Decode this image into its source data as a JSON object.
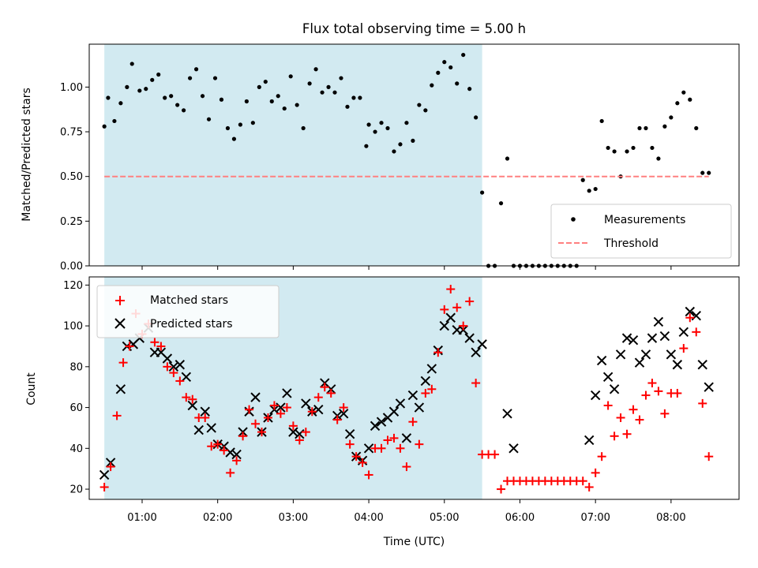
{
  "colors": {
    "shade": "#add8e6",
    "measurement": "#000000",
    "threshold": "#ff8080",
    "matched": "#ff0000",
    "predicted": "#000000"
  },
  "chart_data": [
    {
      "type": "scatter",
      "title": "Flux total observing time = 5.00 h",
      "xlabel": "",
      "ylabel": "Matched/Predicted stars",
      "x_unit": "hours UTC",
      "xlim": [
        "00:18",
        "08:54"
      ],
      "ylim": [
        0,
        1.24
      ],
      "yticks": [
        "0.00",
        "0.25",
        "0.50",
        "0.75",
        "1.00"
      ],
      "shaded_span": {
        "start": "00:30",
        "end": "05:30"
      },
      "threshold": 0.5,
      "legend": {
        "position": "bottom-right",
        "entries": [
          "Measurements",
          "Threshold"
        ]
      },
      "series": [
        {
          "name": "Measurements",
          "marker": "dot",
          "x": [
            "00:30",
            "00:33",
            "00:38",
            "00:43",
            "00:48",
            "00:52",
            "00:58",
            "01:03",
            "01:08",
            "01:13",
            "01:18",
            "01:23",
            "01:28",
            "01:33",
            "01:38",
            "01:43",
            "01:48",
            "01:53",
            "01:58",
            "02:03",
            "02:08",
            "02:13",
            "02:18",
            "02:23",
            "02:28",
            "02:33",
            "02:38",
            "02:43",
            "02:48",
            "02:53",
            "02:58",
            "03:03",
            "03:08",
            "03:13",
            "03:18",
            "03:23",
            "03:28",
            "03:33",
            "03:38",
            "03:43",
            "03:48",
            "03:53",
            "03:58",
            "04:00",
            "04:05",
            "04:10",
            "04:15",
            "04:20",
            "04:25",
            "04:30",
            "04:35",
            "04:40",
            "04:45",
            "04:50",
            "04:55",
            "05:00",
            "05:05",
            "05:10",
            "05:15",
            "05:20",
            "05:25",
            "05:30",
            "05:35",
            "05:40",
            "05:45",
            "05:50",
            "05:55",
            "06:00",
            "06:05",
            "06:10",
            "06:15",
            "06:20",
            "06:25",
            "06:30",
            "06:35",
            "06:40",
            "06:45",
            "06:50",
            "06:55",
            "07:00",
            "07:05",
            "07:10",
            "07:15",
            "07:20",
            "07:25",
            "07:30",
            "07:35",
            "07:40",
            "07:45",
            "07:50",
            "07:55",
            "08:00",
            "08:05",
            "08:10",
            "08:15",
            "08:20",
            "08:25",
            "08:30"
          ],
          "y": [
            0.78,
            0.94,
            0.81,
            0.91,
            1.0,
            1.13,
            0.98,
            0.99,
            1.04,
            1.07,
            0.94,
            0.95,
            0.9,
            0.87,
            1.05,
            1.1,
            0.95,
            0.82,
            1.05,
            0.93,
            0.77,
            0.71,
            0.79,
            0.92,
            0.8,
            1.0,
            1.03,
            0.92,
            0.95,
            0.88,
            1.06,
            0.9,
            0.77,
            1.02,
            1.1,
            0.97,
            1.0,
            0.97,
            1.05,
            0.89,
            0.94,
            0.94,
            0.67,
            0.79,
            0.75,
            0.8,
            0.77,
            0.64,
            0.68,
            0.8,
            0.7,
            0.9,
            0.87,
            1.01,
            1.08,
            1.14,
            1.11,
            1.02,
            1.18,
            0.99,
            0.83,
            0.41,
            0.0,
            0.0,
            0.35,
            0.6,
            0.0,
            0.0,
            0.0,
            0.0,
            0.0,
            0.0,
            0.0,
            0.0,
            0.0,
            0.0,
            0.0,
            0.48,
            0.42,
            0.43,
            0.81,
            0.66,
            0.64,
            0.5,
            0.64,
            0.66,
            0.77,
            0.77,
            0.66,
            0.6,
            0.78,
            0.83,
            0.91,
            0.97,
            0.93,
            0.77,
            0.52,
            0.52
          ]
        }
      ]
    },
    {
      "type": "scatter",
      "title": "",
      "xlabel": "Time (UTC)",
      "ylabel": "Count",
      "xlim": [
        "00:18",
        "08:54"
      ],
      "ylim": [
        15,
        124
      ],
      "xticks": [
        "01:00",
        "02:00",
        "03:00",
        "04:00",
        "05:00",
        "06:00",
        "07:00",
        "08:00"
      ],
      "yticks": [
        "20",
        "40",
        "60",
        "80",
        "100",
        "120"
      ],
      "shaded_span": {
        "start": "00:30",
        "end": "05:30"
      },
      "legend": {
        "position": "top-left",
        "entries": [
          "Matched stars",
          "Predicted stars"
        ]
      },
      "series": [
        {
          "name": "Matched stars",
          "marker": "plus",
          "x": [
            "00:30",
            "00:35",
            "00:40",
            "00:45",
            "00:50",
            "00:55",
            "01:00",
            "01:05",
            "01:10",
            "01:15",
            "01:20",
            "01:25",
            "01:30",
            "01:35",
            "01:40",
            "01:45",
            "01:50",
            "01:55",
            "02:00",
            "02:05",
            "02:10",
            "02:15",
            "02:20",
            "02:25",
            "02:30",
            "02:35",
            "02:40",
            "02:45",
            "02:50",
            "02:55",
            "03:00",
            "03:05",
            "03:10",
            "03:15",
            "03:20",
            "03:25",
            "03:30",
            "03:35",
            "03:40",
            "03:45",
            "03:50",
            "03:55",
            "04:00",
            "04:05",
            "04:10",
            "04:15",
            "04:20",
            "04:25",
            "04:30",
            "04:35",
            "04:40",
            "04:45",
            "04:50",
            "04:55",
            "05:00",
            "05:05",
            "05:10",
            "05:15",
            "05:20",
            "05:25",
            "05:30",
            "05:35",
            "05:40",
            "05:45",
            "05:50",
            "05:55",
            "06:00",
            "06:05",
            "06:10",
            "06:15",
            "06:20",
            "06:25",
            "06:30",
            "06:35",
            "06:40",
            "06:45",
            "06:50",
            "06:55",
            "07:00",
            "07:05",
            "07:10",
            "07:15",
            "07:20",
            "07:25",
            "07:30",
            "07:35",
            "07:40",
            "07:45",
            "07:50",
            "07:55",
            "08:00",
            "08:05",
            "08:10",
            "08:15",
            "08:20",
            "08:25",
            "08:30"
          ],
          "y": [
            21,
            31,
            56,
            82,
            90,
            106,
            96,
            101,
            92,
            90,
            80,
            77,
            73,
            65,
            64,
            55,
            55,
            41,
            42,
            39,
            28,
            34,
            46,
            59,
            52,
            48,
            55,
            61,
            57,
            60,
            51,
            44,
            48,
            58,
            65,
            70,
            67,
            54,
            60,
            42,
            36,
            33,
            27,
            40,
            40,
            44,
            45,
            40,
            31,
            53,
            42,
            67,
            69,
            87,
            108,
            118,
            109,
            100,
            112,
            72,
            37,
            37,
            37,
            20,
            24,
            24,
            24,
            24,
            24,
            24,
            24,
            24,
            24,
            24,
            24,
            24,
            24,
            21,
            28,
            36,
            61,
            46,
            55,
            47,
            59,
            54,
            66,
            72,
            68,
            57,
            67,
            67,
            89,
            104,
            97,
            62,
            36
          ]
        },
        {
          "name": "Predicted stars",
          "marker": "x",
          "x": [
            "00:30",
            "00:35",
            "00:43",
            "00:48",
            "00:53",
            "00:58",
            "01:05",
            "01:10",
            "01:15",
            "01:20",
            "01:25",
            "01:30",
            "01:35",
            "01:40",
            "01:45",
            "01:50",
            "01:55",
            "02:00",
            "02:05",
            "02:10",
            "02:15",
            "02:20",
            "02:25",
            "02:30",
            "02:35",
            "02:40",
            "02:45",
            "02:50",
            "02:55",
            "03:00",
            "03:05",
            "03:10",
            "03:15",
            "03:20",
            "03:25",
            "03:30",
            "03:35",
            "03:40",
            "03:45",
            "03:50",
            "03:55",
            "04:00",
            "04:05",
            "04:10",
            "04:15",
            "04:20",
            "04:25",
            "04:30",
            "04:35",
            "04:40",
            "04:45",
            "04:50",
            "04:55",
            "05:00",
            "05:05",
            "05:10",
            "05:15",
            "05:20",
            "05:25",
            "05:30",
            "05:50",
            "05:55",
            "06:55",
            "07:00",
            "07:05",
            "07:10",
            "07:15",
            "07:20",
            "07:25",
            "07:30",
            "07:35",
            "07:40",
            "07:45",
            "07:50",
            "07:55",
            "08:00",
            "08:05",
            "08:10",
            "08:15",
            "08:20",
            "08:25",
            "08:30"
          ],
          "y": [
            27,
            33,
            69,
            90,
            91,
            94,
            99,
            87,
            87,
            84,
            80,
            81,
            75,
            61,
            49,
            58,
            50,
            42,
            41,
            38,
            37,
            48,
            58,
            65,
            48,
            55,
            59,
            60,
            67,
            48,
            47,
            62,
            58,
            59,
            72,
            69,
            56,
            57,
            47,
            36,
            34,
            40,
            51,
            53,
            55,
            58,
            62,
            45,
            66,
            60,
            73,
            79,
            88,
            100,
            104,
            98,
            98,
            94,
            87,
            91,
            57,
            40,
            44,
            66,
            83,
            75,
            69,
            86,
            94,
            93,
            82,
            86,
            94,
            102,
            95,
            86,
            81,
            97,
            107,
            105,
            81,
            70
          ]
        }
      ]
    }
  ]
}
